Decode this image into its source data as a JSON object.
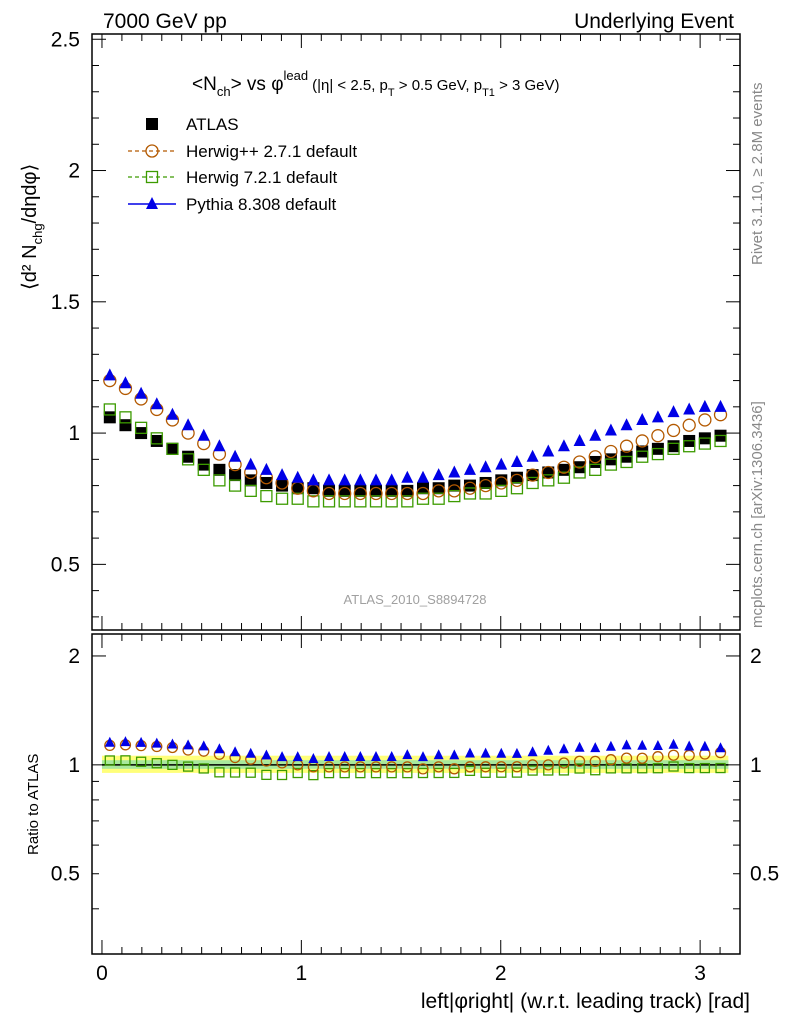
{
  "header": {
    "left": "7000 GeV pp",
    "right": "Underlying Event"
  },
  "title": {
    "main": "<N",
    "main_sub": "ch",
    "vs": "> vs ",
    "phi": "φ",
    "phi_sup": "lead",
    "cuts": "(|η| < 2.5, p",
    "cuts_sub1": "T",
    "cuts_mid": " > 0.5 GeV, p",
    "cuts_sub2": "T1",
    "cuts_end": " > 3 GeV)"
  },
  "side_labels": {
    "rivet": "Rivet 3.1.10, ≥ 2.8M events",
    "mcplots": "mcplots.cern.ch [arXiv:1306.3436]"
  },
  "watermark": "ATLAS_2010_S8894728",
  "axes": {
    "ylabel_top": "⟨d² N",
    "ylabel_top_sub": "chg",
    "ylabel_top_end": "/dηdφ⟩",
    "ylabel_bottom": "Ratio to ATLAS",
    "xlabel": "left|φright| (w.r.t. leading track) [rad]"
  },
  "legend": [
    {
      "name": "ATLAS",
      "color": "#000000",
      "marker": "square-filled"
    },
    {
      "name": "Herwig++ 2.7.1 default",
      "color": "#b35900",
      "marker": "circle-open"
    },
    {
      "name": "Herwig 7.2.1 default",
      "color": "#3c9b00",
      "marker": "square-open"
    },
    {
      "name": "Pythia 8.308 default",
      "color": "#0000e6",
      "marker": "triangle-filled"
    }
  ],
  "chart_data": {
    "type": "scatter",
    "xlim": [
      -0.05,
      3.2
    ],
    "ylim_top": [
      0.25,
      2.52
    ],
    "ylim_bottom": [
      0.3,
      2.3
    ],
    "xticks": [
      "0",
      "1",
      "2",
      "3"
    ],
    "yticks_top": [
      "0.5",
      "1",
      "1.5",
      "2",
      "2.5"
    ],
    "yticks_bottom": [
      "0.5",
      "1",
      "2"
    ],
    "x": [
      0.0393,
      0.1178,
      0.1963,
      0.2749,
      0.3534,
      0.432,
      0.5105,
      0.589,
      0.6676,
      0.7461,
      0.8247,
      0.9032,
      0.9817,
      1.0603,
      1.1388,
      1.2174,
      1.2959,
      1.3744,
      1.453,
      1.5315,
      1.6101,
      1.6886,
      1.7671,
      1.8457,
      1.9242,
      2.0028,
      2.0813,
      2.1598,
      2.2384,
      2.3169,
      2.3955,
      2.474,
      2.5525,
      2.6311,
      2.7096,
      2.7882,
      2.8667,
      2.9452,
      3.0238,
      3.1023
    ],
    "series": [
      {
        "name": "ATLAS",
        "values": [
          1.06,
          1.03,
          1.0,
          0.97,
          0.94,
          0.91,
          0.88,
          0.86,
          0.84,
          0.82,
          0.81,
          0.8,
          0.79,
          0.79,
          0.78,
          0.78,
          0.78,
          0.78,
          0.78,
          0.78,
          0.79,
          0.79,
          0.8,
          0.8,
          0.81,
          0.82,
          0.83,
          0.84,
          0.85,
          0.86,
          0.87,
          0.89,
          0.9,
          0.91,
          0.93,
          0.94,
          0.95,
          0.97,
          0.98,
          0.99
        ]
      },
      {
        "name": "Herwig++ 2.7.1 default",
        "values": [
          1.2,
          1.17,
          1.13,
          1.09,
          1.05,
          1.0,
          0.96,
          0.92,
          0.88,
          0.85,
          0.83,
          0.81,
          0.79,
          0.78,
          0.77,
          0.77,
          0.77,
          0.77,
          0.77,
          0.77,
          0.77,
          0.78,
          0.78,
          0.79,
          0.8,
          0.81,
          0.82,
          0.84,
          0.85,
          0.87,
          0.89,
          0.91,
          0.93,
          0.95,
          0.97,
          0.99,
          1.01,
          1.03,
          1.05,
          1.07
        ]
      },
      {
        "name": "Herwig 7.2.1 default",
        "values": [
          1.09,
          1.06,
          1.02,
          0.98,
          0.94,
          0.9,
          0.86,
          0.82,
          0.8,
          0.78,
          0.76,
          0.75,
          0.75,
          0.74,
          0.74,
          0.74,
          0.74,
          0.74,
          0.74,
          0.74,
          0.75,
          0.75,
          0.76,
          0.77,
          0.77,
          0.78,
          0.79,
          0.81,
          0.82,
          0.83,
          0.85,
          0.86,
          0.88,
          0.89,
          0.91,
          0.92,
          0.94,
          0.95,
          0.96,
          0.97
        ]
      },
      {
        "name": "Pythia 8.308 default",
        "values": [
          1.22,
          1.19,
          1.15,
          1.11,
          1.07,
          1.03,
          0.99,
          0.95,
          0.91,
          0.88,
          0.86,
          0.84,
          0.83,
          0.82,
          0.82,
          0.82,
          0.82,
          0.82,
          0.82,
          0.83,
          0.83,
          0.84,
          0.85,
          0.86,
          0.87,
          0.88,
          0.89,
          0.91,
          0.93,
          0.95,
          0.97,
          0.99,
          1.01,
          1.03,
          1.05,
          1.06,
          1.08,
          1.09,
          1.1,
          1.1
        ]
      }
    ]
  }
}
